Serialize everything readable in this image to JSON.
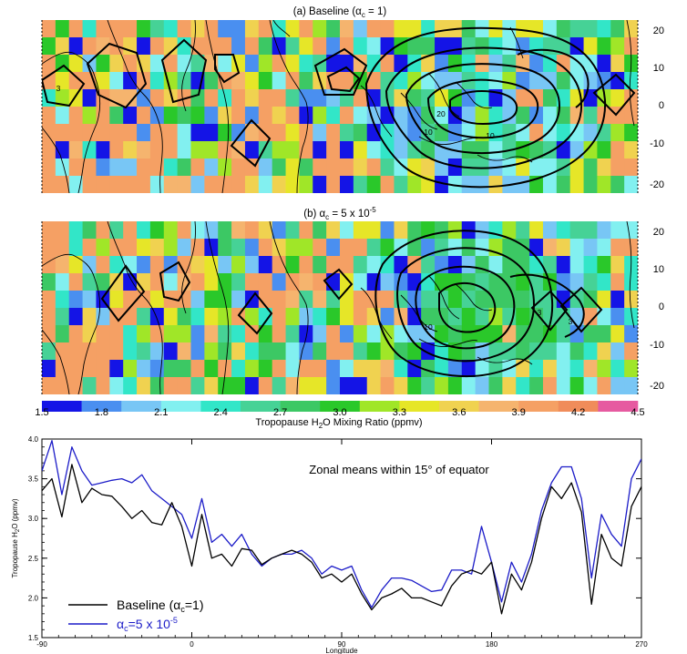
{
  "panel_a": {
    "title": "(a) Baseline (α",
    "title_sub": "c",
    "title_tail": " = 1)",
    "lat_ticks": [
      "20",
      "10",
      "0",
      "-10",
      "-20"
    ],
    "contour_labels": [
      "3",
      "10",
      "20",
      "10"
    ]
  },
  "panel_b": {
    "title": "(b) α",
    "title_sub": "c",
    "title_mid": " = 5 x 10",
    "title_sup": "-5",
    "lat_ticks": [
      "20",
      "10",
      "0",
      "-10",
      "-20"
    ],
    "contour_labels": [
      "3",
      "10",
      "3"
    ]
  },
  "colorbar": {
    "tick_labels": [
      "1.5",
      "1.8",
      "2.1",
      "2.4",
      "2.7",
      "3.0",
      "3.3",
      "3.6",
      "3.9",
      "4.2",
      "4.5"
    ],
    "title_pre": "Tropopause H",
    "title_sub": "2",
    "title_post": "O Mixing Ratio (ppmv)",
    "colors": [
      "#1414e6",
      "#4a8ff0",
      "#78c6f5",
      "#82f0f0",
      "#32e6c8",
      "#46d296",
      "#3cc864",
      "#2ac82a",
      "#a0e628",
      "#e6e628",
      "#f0d250",
      "#f5b46e",
      "#f5a064",
      "#f08c5a",
      "#e65aa0"
    ]
  },
  "colors": {
    "land_tan": "#f5a064",
    "baseline_line": "#000000",
    "alpha_line": "#1c1cc8"
  },
  "chart_data": {
    "type": "line",
    "annotation": "Zonal means within 15° of equator",
    "xlabel": "Longitude",
    "ylabel_pre": "Tropopause H",
    "ylabel_sub": "2",
    "ylabel_post": "O (ppmv)",
    "xlim": [
      -90,
      270
    ],
    "ylim": [
      1.5,
      4.0
    ],
    "x_ticks": [
      "-90",
      "0",
      "90",
      "180",
      "270"
    ],
    "y_ticks": [
      "1.5",
      "2.0",
      "2.5",
      "3.0",
      "3.5",
      "4.0"
    ],
    "x": [
      -90,
      -84,
      -78,
      -72,
      -66,
      -60,
      -54,
      -48,
      -42,
      -36,
      -30,
      -24,
      -18,
      -12,
      -6,
      0,
      6,
      12,
      18,
      24,
      30,
      36,
      42,
      48,
      54,
      60,
      66,
      72,
      78,
      84,
      90,
      96,
      102,
      108,
      114,
      120,
      126,
      132,
      138,
      144,
      150,
      156,
      162,
      168,
      174,
      180,
      186,
      192,
      198,
      204,
      210,
      216,
      222,
      228,
      234,
      240,
      246,
      252,
      258,
      264,
      270
    ],
    "series": [
      {
        "name_pre": "Baseline (α",
        "name_sub": "c",
        "name_post": "=1)",
        "values": [
          3.35,
          3.5,
          3.02,
          3.68,
          3.2,
          3.38,
          3.3,
          3.28,
          3.15,
          3.0,
          3.1,
          2.95,
          2.92,
          3.2,
          2.9,
          2.4,
          3.05,
          2.5,
          2.55,
          2.4,
          2.62,
          2.6,
          2.42,
          2.5,
          2.55,
          2.6,
          2.55,
          2.45,
          2.25,
          2.3,
          2.2,
          2.3,
          2.05,
          1.85,
          2.0,
          2.05,
          2.12,
          2.0,
          2.0,
          1.95,
          1.9,
          2.15,
          2.3,
          2.35,
          2.3,
          2.45,
          1.8,
          2.3,
          2.1,
          2.45,
          3.0,
          3.4,
          3.25,
          3.45,
          3.08,
          1.92,
          2.8,
          2.5,
          2.4,
          3.15,
          3.4
        ]
      },
      {
        "name_pre": "α",
        "name_sub": "c",
        "name_post": "=5 x 10",
        "name_sup": "-5",
        "values": [
          3.6,
          3.98,
          3.3,
          3.9,
          3.6,
          3.42,
          3.45,
          3.48,
          3.5,
          3.45,
          3.55,
          3.35,
          3.25,
          3.15,
          3.05,
          2.75,
          3.25,
          2.7,
          2.8,
          2.65,
          2.8,
          2.55,
          2.4,
          2.5,
          2.55,
          2.55,
          2.6,
          2.5,
          2.3,
          2.4,
          2.35,
          2.4,
          2.1,
          1.88,
          2.1,
          2.25,
          2.25,
          2.22,
          2.15,
          2.08,
          2.1,
          2.35,
          2.35,
          2.3,
          2.9,
          2.45,
          1.95,
          2.45,
          2.2,
          2.55,
          3.1,
          3.45,
          3.65,
          3.65,
          3.25,
          2.25,
          3.05,
          2.8,
          2.65,
          3.5,
          3.75
        ]
      }
    ]
  }
}
